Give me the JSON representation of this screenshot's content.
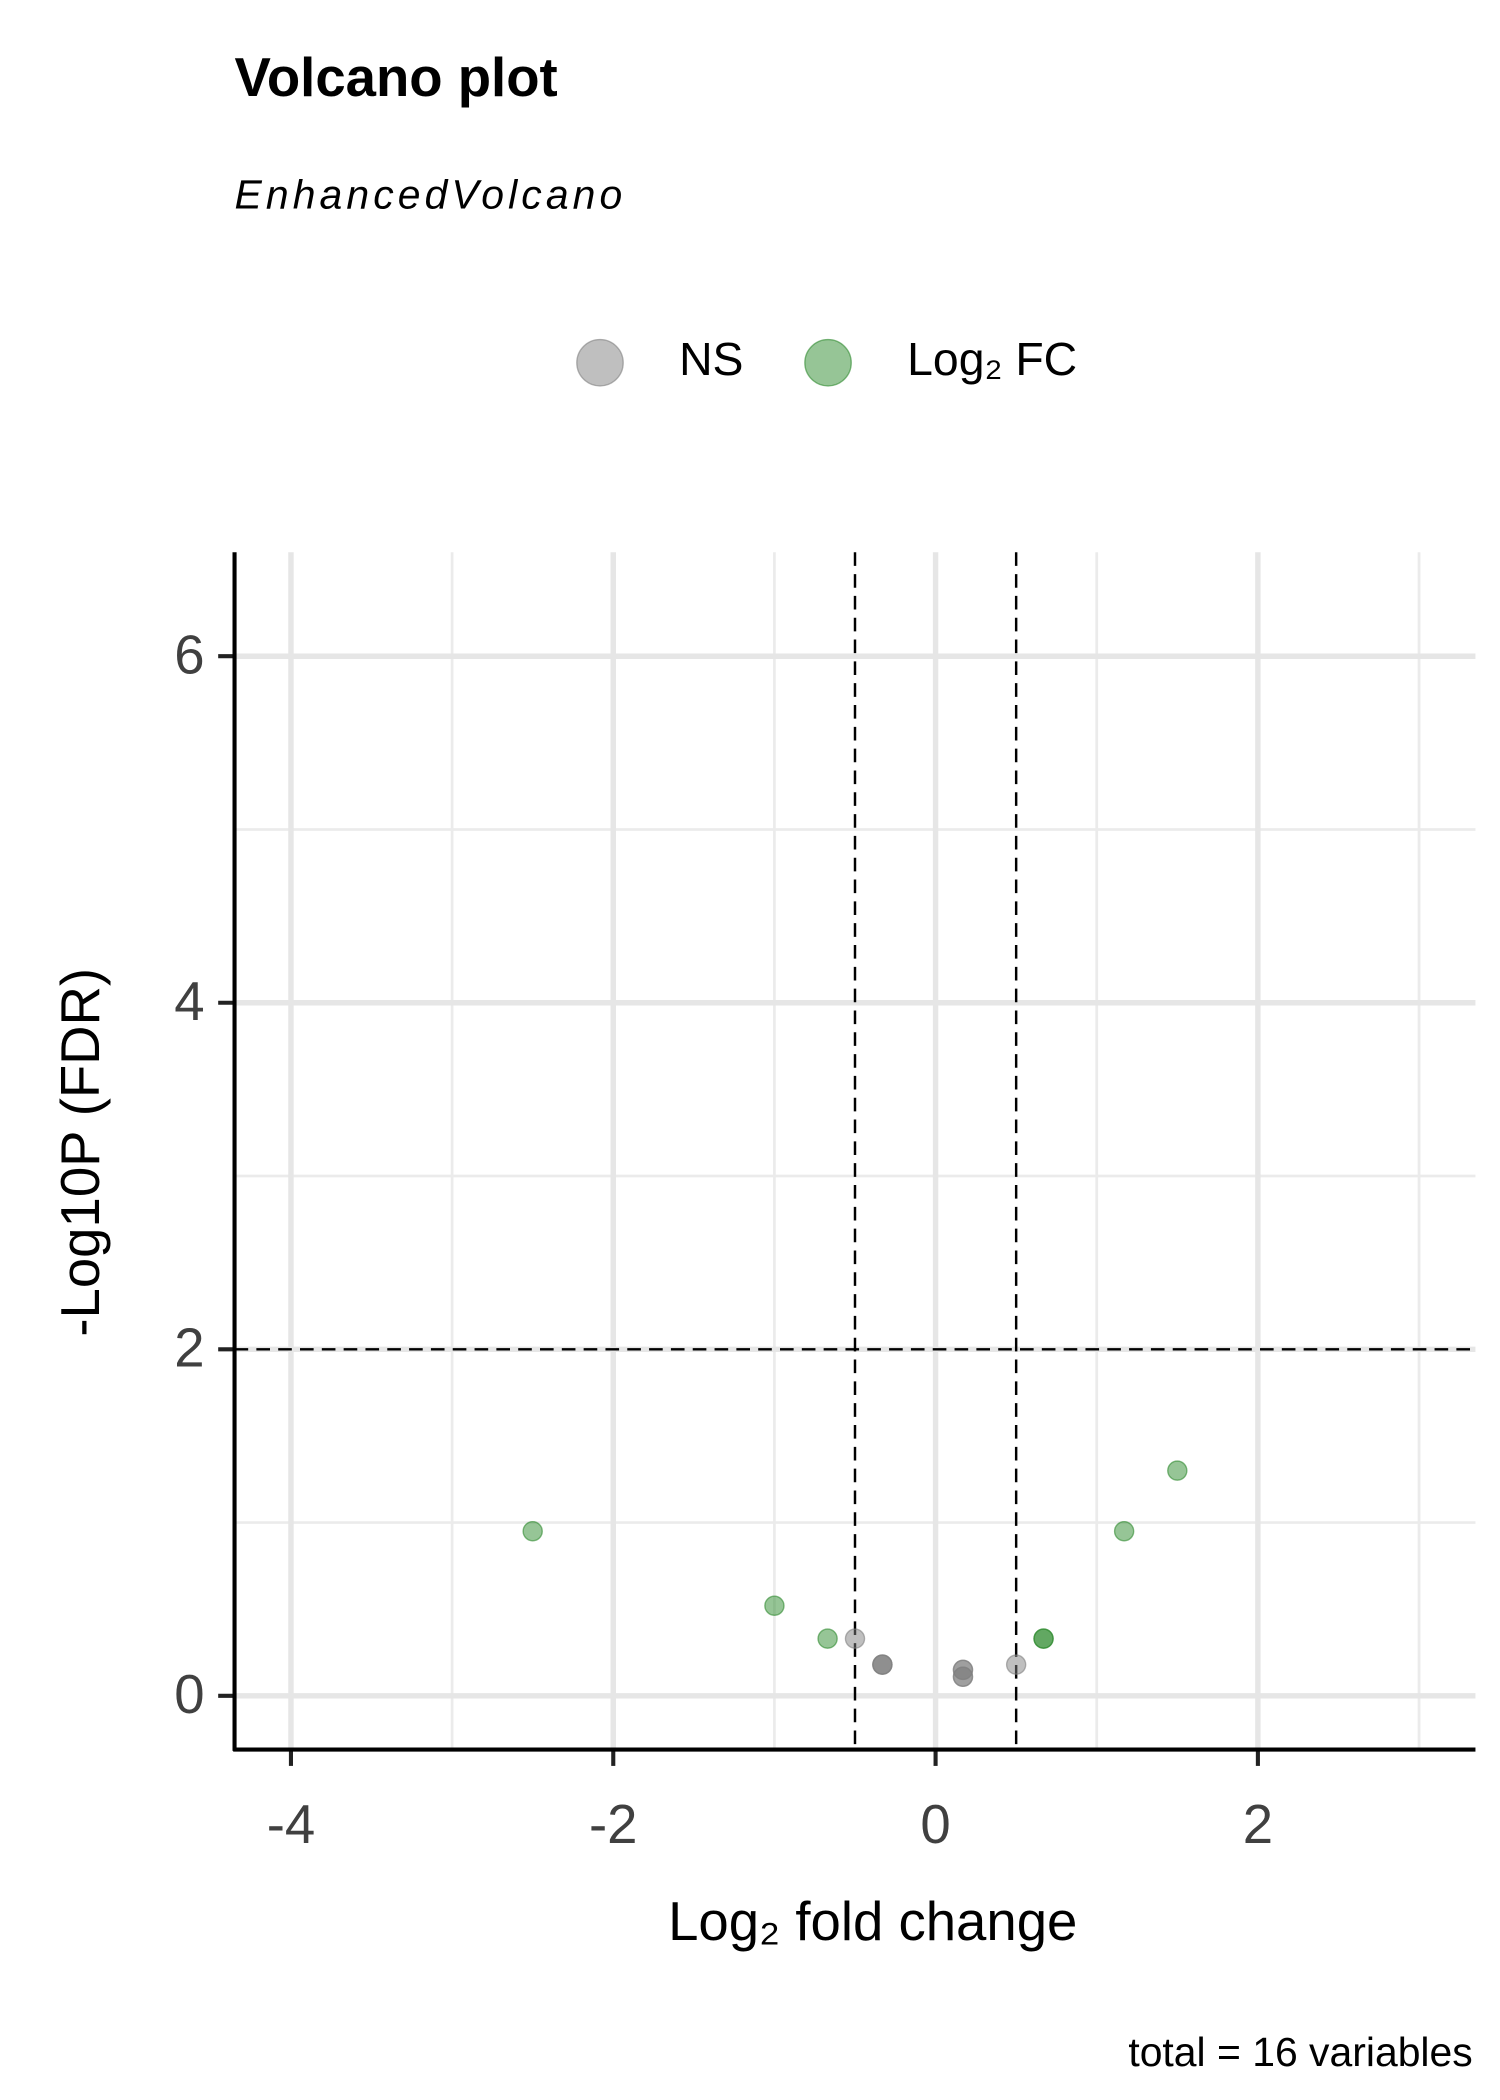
{
  "chart_data": {
    "type": "scatter",
    "title": "Volcano plot",
    "subtitle": "EnhancedVolcano",
    "x_label": "Log₂ fold change",
    "y_label": "-Log10P (FDR)",
    "caption": "total = 16 variables",
    "legend_position": "top",
    "series": [
      {
        "name": "NS",
        "color": "#808080",
        "x": [
          -0.5,
          -0.33,
          -0.33,
          -0.33,
          0.17,
          0.17,
          0.17,
          0.17,
          0.5
        ],
        "values": [
          0.33,
          0.18,
          0.18,
          0.18,
          0.15,
          0.15,
          0.11,
          0.11,
          0.18
        ]
      },
      {
        "name": "Log₂ FC",
        "color": "#2e8b2e",
        "x": [
          -2.5,
          -1,
          -0.67,
          0.67,
          0.67,
          1.17,
          1.5
        ],
        "values": [
          0.95,
          0.52,
          0.33,
          0.33,
          0.33,
          0.95,
          1.3
        ]
      }
    ],
    "xlim": [
      -4.35,
      3.35
    ],
    "xticks": [
      -4,
      -2,
      0,
      2
    ],
    "x_minor_grid": [
      -3,
      -1,
      1,
      3
    ],
    "ylim": [
      -0.31,
      6.6
    ],
    "yticks": [
      0,
      2,
      4,
      6
    ],
    "y_minor_grid": [
      1,
      3,
      5
    ],
    "x_cutoffs": [
      -0.5,
      0.5
    ],
    "y_cutoff": 2,
    "grid": true
  }
}
